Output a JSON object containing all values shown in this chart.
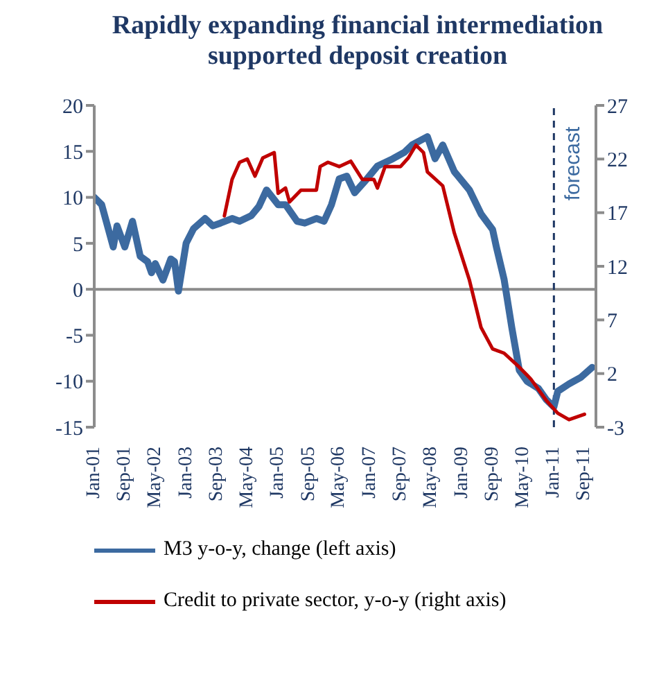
{
  "chart_data": {
    "type": "line",
    "title": "Rapidly expanding financial intermediation supported deposit creation",
    "xlim": [
      "2001-01",
      "2011-12"
    ],
    "xticks": [
      {
        "value": "2001-01",
        "label": "Jan-01"
      },
      {
        "value": "2001-09",
        "label": "Sep-01"
      },
      {
        "value": "2002-05",
        "label": "May-02"
      },
      {
        "value": "2003-01",
        "label": "Jan-03"
      },
      {
        "value": "2003-09",
        "label": "Sep-03"
      },
      {
        "value": "2004-05",
        "label": "May-04"
      },
      {
        "value": "2005-01",
        "label": "Jan-05"
      },
      {
        "value": "2005-09",
        "label": "Sep-05"
      },
      {
        "value": "2006-05",
        "label": "May-06"
      },
      {
        "value": "2007-01",
        "label": "Jan-07"
      },
      {
        "value": "2007-09",
        "label": "Sep-07"
      },
      {
        "value": "2008-05",
        "label": "May-08"
      },
      {
        "value": "2009-01",
        "label": "Jan-09"
      },
      {
        "value": "2009-09",
        "label": "Sep-09"
      },
      {
        "value": "2010-05",
        "label": "May-10"
      },
      {
        "value": "2011-01",
        "label": "Jan-11"
      },
      {
        "value": "2011-09",
        "label": "Sep-11"
      }
    ],
    "ylim": [
      -15,
      20
    ],
    "yticks": [
      -15,
      -10,
      -5,
      0,
      5,
      10,
      15,
      20
    ],
    "y2lim": [
      -3,
      27
    ],
    "y2ticks": [
      -3,
      2,
      7,
      12,
      17,
      22,
      27
    ],
    "legend": "bottom",
    "marker": "none",
    "ref_lines": [
      {
        "axis": "y",
        "value": 0,
        "color": "#8c8c8c"
      },
      {
        "axis": "x",
        "value": "2011-01",
        "label": "forecast",
        "color": "#1f3864",
        "line_style": "dashed"
      }
    ],
    "series": [
      {
        "name": "M3 y-o-y, change (left axis)",
        "color": "#3c6aa0",
        "axis": "y",
        "x": [
          "2001-01",
          "2001-03",
          "2001-06",
          "2001-07",
          "2001-09",
          "2001-11",
          "2002-01",
          "2002-03",
          "2002-04",
          "2002-05",
          "2002-07",
          "2002-09",
          "2002-10",
          "2002-11",
          "2003-01",
          "2003-03",
          "2003-06",
          "2003-08",
          "2003-10",
          "2004-01",
          "2004-03",
          "2004-06",
          "2004-08",
          "2004-10",
          "2005-01",
          "2005-03",
          "2005-06",
          "2005-08",
          "2005-11",
          "2006-01",
          "2006-03",
          "2006-05",
          "2006-07",
          "2006-09",
          "2006-12",
          "2007-03",
          "2007-07",
          "2007-10",
          "2007-12",
          "2008-04",
          "2008-06",
          "2008-08",
          "2008-11",
          "2009-03",
          "2009-06",
          "2009-09",
          "2009-10",
          "2009-12",
          "2010-02",
          "2010-04",
          "2010-06",
          "2010-09",
          "2010-11",
          "2011-01",
          "2011-02",
          "2011-05",
          "2011-08",
          "2011-11"
        ],
        "values": [
          10.0,
          9.2,
          4.6,
          6.9,
          4.6,
          7.4,
          3.6,
          3.0,
          1.8,
          2.8,
          1.0,
          3.3,
          3.0,
          -0.2,
          5.0,
          6.6,
          7.7,
          6.9,
          7.2,
          7.7,
          7.4,
          8.0,
          9.0,
          10.8,
          9.2,
          9.2,
          7.4,
          7.2,
          7.7,
          7.4,
          9.2,
          12.0,
          12.3,
          10.5,
          11.9,
          13.4,
          14.2,
          14.9,
          15.7,
          16.6,
          14.2,
          15.7,
          12.8,
          10.8,
          8.2,
          6.5,
          4.6,
          1.1,
          -4.2,
          -8.8,
          -10.0,
          -10.8,
          -12.0,
          -12.8,
          -11.1,
          -10.3,
          -9.6,
          -8.5
        ]
      },
      {
        "name": "Credit to private sector, y-o-y (right axis)",
        "color": "#c00000",
        "axis": "y2",
        "x": [
          "2003-11",
          "2004-01",
          "2004-03",
          "2004-05",
          "2004-07",
          "2004-09",
          "2004-12",
          "2005-01",
          "2005-03",
          "2005-04",
          "2005-07",
          "2005-11",
          "2005-12",
          "2006-02",
          "2006-05",
          "2006-08",
          "2006-11",
          "2007-02",
          "2007-03",
          "2007-05",
          "2007-09",
          "2007-11",
          "2008-01",
          "2008-03",
          "2008-04",
          "2008-08",
          "2008-11",
          "2009-03",
          "2009-06",
          "2009-09",
          "2009-12",
          "2010-04",
          "2010-07",
          "2010-11",
          "2011-02",
          "2011-05",
          "2011-09"
        ],
        "values": [
          16.7,
          20.1,
          21.7,
          22.0,
          20.4,
          22.1,
          22.6,
          18.8,
          19.3,
          18.0,
          19.1,
          19.1,
          21.3,
          21.7,
          21.3,
          21.8,
          20.1,
          20.1,
          19.3,
          21.3,
          21.3,
          22.1,
          23.3,
          22.6,
          20.8,
          19.5,
          15.1,
          10.7,
          6.3,
          4.3,
          3.9,
          2.6,
          1.5,
          -0.5,
          -1.7,
          -2.3,
          -1.8
        ]
      }
    ]
  }
}
